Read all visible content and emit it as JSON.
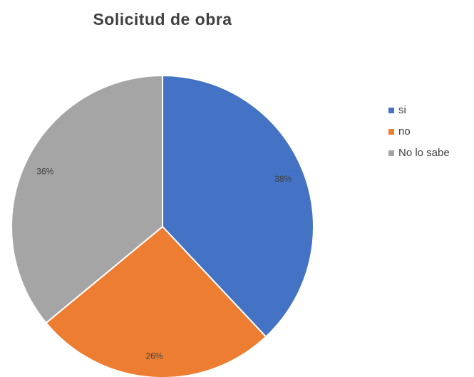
{
  "chart_data": {
    "type": "pie",
    "title": "Solicitud de obra",
    "categories": [
      "si",
      "no",
      "No lo sabe"
    ],
    "values": [
      38,
      26,
      36
    ],
    "data_labels": [
      "38%",
      "26%",
      "36%"
    ],
    "colors": [
      "#4472c4",
      "#ed7d31",
      "#a5a5a5"
    ],
    "legend_position": "right",
    "start_angle_deg": 0,
    "direction": "clockwise"
  }
}
